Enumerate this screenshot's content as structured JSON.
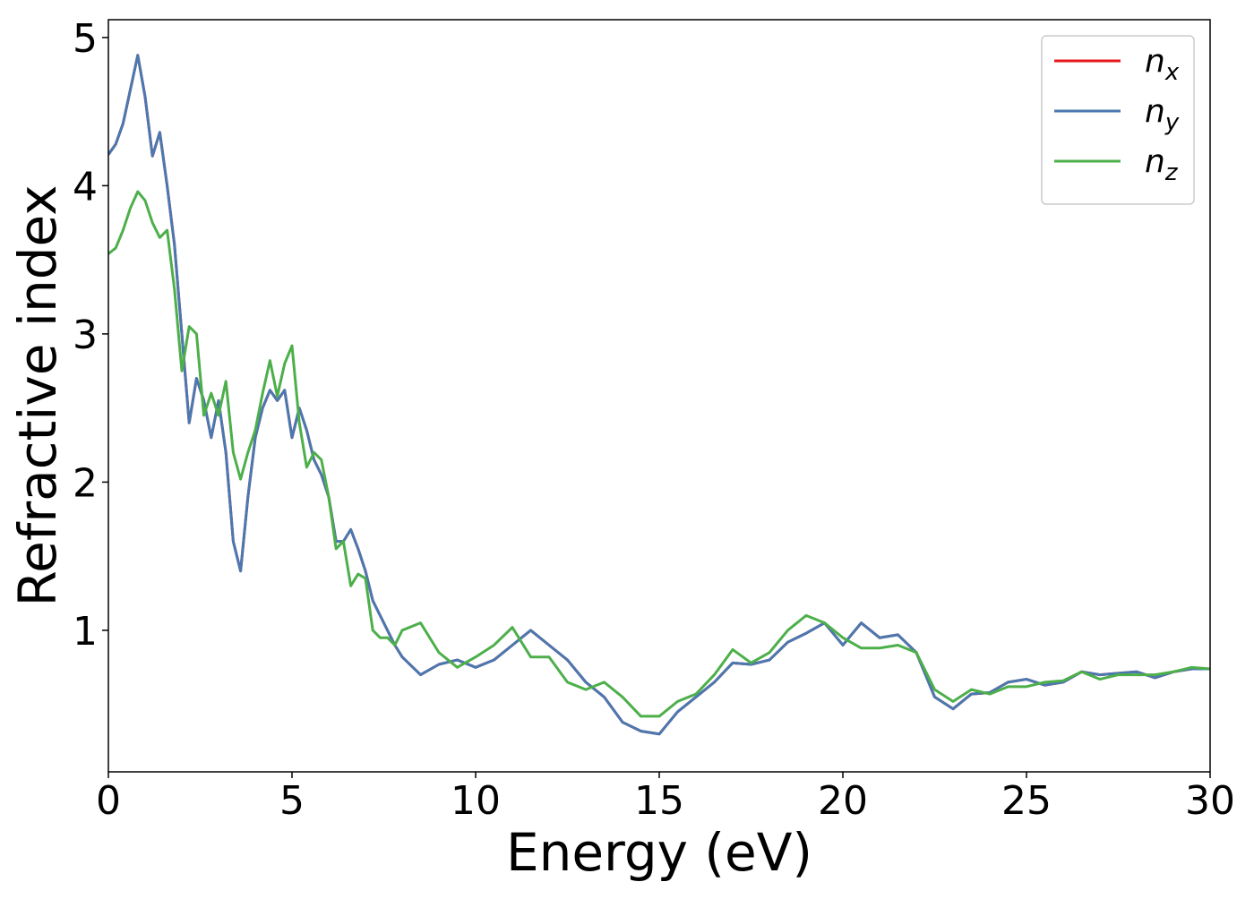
{
  "chart_data": {
    "type": "line",
    "xlabel": "Energy (eV)",
    "ylabel": "Refractive index",
    "x": [
      0,
      0.2,
      0.4,
      0.6,
      0.8,
      1.0,
      1.2,
      1.4,
      1.6,
      1.8,
      2.0,
      2.2,
      2.4,
      2.6,
      2.8,
      3.0,
      3.2,
      3.4,
      3.6,
      3.8,
      4.0,
      4.2,
      4.4,
      4.6,
      4.8,
      5.0,
      5.2,
      5.4,
      5.6,
      5.8,
      6.0,
      6.2,
      6.4,
      6.6,
      6.8,
      7.0,
      7.2,
      7.4,
      7.6,
      7.8,
      8.0,
      8.5,
      9.0,
      9.5,
      10.0,
      10.5,
      11.0,
      11.5,
      12.0,
      12.5,
      13.0,
      13.5,
      14.0,
      14.5,
      15.0,
      15.5,
      16.0,
      16.5,
      17.0,
      17.5,
      18.0,
      18.5,
      19.0,
      19.5,
      20.0,
      20.5,
      21.0,
      21.5,
      22.0,
      22.5,
      23.0,
      23.5,
      24.0,
      24.5,
      25.0,
      25.5,
      26.0,
      26.5,
      27.0,
      27.5,
      28.0,
      28.5,
      29.0,
      29.5,
      30.0
    ],
    "series": [
      {
        "name": "nx",
        "color": "#e41a1c",
        "values": [
          4.21,
          4.28,
          4.42,
          4.65,
          4.88,
          4.6,
          4.2,
          4.36,
          4.0,
          3.6,
          3.0,
          2.4,
          2.7,
          2.55,
          2.3,
          2.55,
          2.2,
          1.6,
          1.4,
          1.9,
          2.3,
          2.5,
          2.62,
          2.55,
          2.62,
          2.3,
          2.5,
          2.35,
          2.15,
          2.05,
          1.9,
          1.6,
          1.6,
          1.68,
          1.55,
          1.4,
          1.2,
          1.1,
          1.0,
          0.9,
          0.82,
          0.7,
          0.77,
          0.8,
          0.75,
          0.8,
          0.9,
          1.0,
          0.9,
          0.8,
          0.65,
          0.55,
          0.38,
          0.32,
          0.3,
          0.45,
          0.55,
          0.65,
          0.78,
          0.77,
          0.8,
          0.92,
          0.98,
          1.05,
          0.9,
          1.05,
          0.95,
          0.97,
          0.85,
          0.55,
          0.47,
          0.57,
          0.58,
          0.65,
          0.67,
          0.63,
          0.65,
          0.72,
          0.7,
          0.71,
          0.72,
          0.68,
          0.72,
          0.74,
          0.74
        ]
      },
      {
        "name": "ny",
        "color": "#4a78b0",
        "values": [
          4.21,
          4.28,
          4.42,
          4.65,
          4.88,
          4.6,
          4.2,
          4.36,
          4.0,
          3.6,
          3.0,
          2.4,
          2.7,
          2.55,
          2.3,
          2.55,
          2.2,
          1.6,
          1.4,
          1.9,
          2.3,
          2.5,
          2.62,
          2.55,
          2.62,
          2.3,
          2.5,
          2.35,
          2.15,
          2.05,
          1.9,
          1.6,
          1.6,
          1.68,
          1.55,
          1.4,
          1.2,
          1.1,
          1.0,
          0.9,
          0.82,
          0.7,
          0.77,
          0.8,
          0.75,
          0.8,
          0.9,
          1.0,
          0.9,
          0.8,
          0.65,
          0.55,
          0.38,
          0.32,
          0.3,
          0.45,
          0.55,
          0.65,
          0.78,
          0.77,
          0.8,
          0.92,
          0.98,
          1.05,
          0.9,
          1.05,
          0.95,
          0.97,
          0.85,
          0.55,
          0.47,
          0.57,
          0.58,
          0.65,
          0.67,
          0.63,
          0.65,
          0.72,
          0.7,
          0.71,
          0.72,
          0.68,
          0.72,
          0.74,
          0.74
        ]
      },
      {
        "name": "nz",
        "color": "#4daf4a",
        "values": [
          3.54,
          3.58,
          3.7,
          3.85,
          3.96,
          3.9,
          3.75,
          3.65,
          3.7,
          3.3,
          2.75,
          3.05,
          3.0,
          2.45,
          2.6,
          2.45,
          2.68,
          2.2,
          2.02,
          2.2,
          2.35,
          2.6,
          2.82,
          2.58,
          2.8,
          2.92,
          2.4,
          2.1,
          2.2,
          2.15,
          1.9,
          1.55,
          1.6,
          1.3,
          1.38,
          1.35,
          1.0,
          0.95,
          0.95,
          0.9,
          1.0,
          1.05,
          0.85,
          0.75,
          0.82,
          0.9,
          1.02,
          0.82,
          0.82,
          0.65,
          0.6,
          0.65,
          0.55,
          0.42,
          0.42,
          0.52,
          0.57,
          0.7,
          0.87,
          0.78,
          0.85,
          1.0,
          1.1,
          1.05,
          0.95,
          0.88,
          0.88,
          0.9,
          0.85,
          0.6,
          0.52,
          0.6,
          0.57,
          0.62,
          0.62,
          0.65,
          0.66,
          0.72,
          0.67,
          0.7,
          0.7,
          0.7,
          0.72,
          0.75,
          0.74
        ]
      }
    ],
    "xlim": [
      0,
      30
    ],
    "ylim": [
      0.045,
      5.12
    ],
    "xticks": [
      0,
      5,
      10,
      15,
      20,
      25,
      30
    ],
    "yticks": [
      1,
      2,
      3,
      4,
      5
    ],
    "legend": "upper right",
    "grid": false
  }
}
